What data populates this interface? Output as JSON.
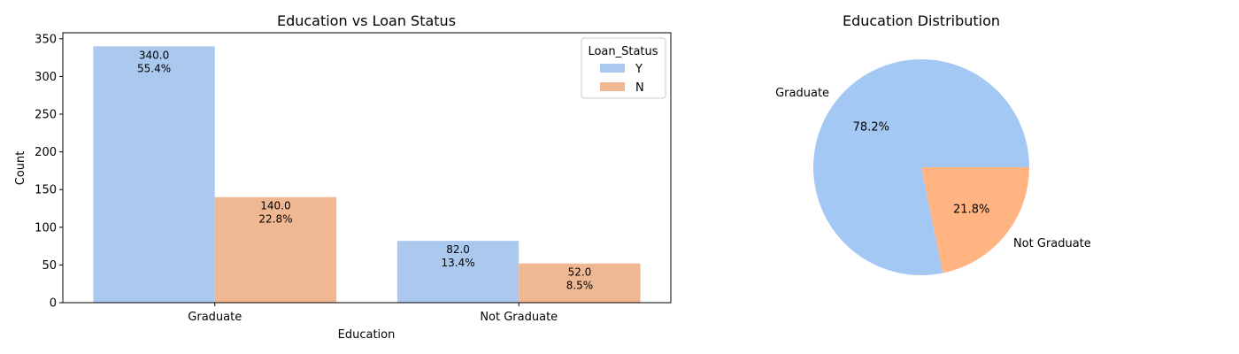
{
  "chart_data": [
    {
      "type": "bar",
      "title": "Education vs Loan Status",
      "xlabel": "Education",
      "ylabel": "Count",
      "categories": [
        "Graduate",
        "Not Graduate"
      ],
      "series": [
        {
          "name": "Y",
          "values": [
            340,
            82
          ],
          "labels": [
            "340.0\n55.4%",
            "82.0\n13.4%"
          ],
          "color": "#abc9ef"
        },
        {
          "name": "N",
          "values": [
            140,
            52
          ],
          "labels": [
            "140.0\n22.8%",
            "52.0\n8.5%"
          ],
          "color": "#f0b892"
        }
      ],
      "ylim": [
        0,
        358
      ],
      "yticks": [
        0,
        50,
        100,
        150,
        200,
        250,
        300,
        350
      ],
      "legend": {
        "title": "Loan_Status",
        "placement": "top-right"
      },
      "grid": false
    },
    {
      "type": "pie",
      "title": "Education Distribution",
      "slices": [
        {
          "label": "Graduate",
          "value": 78.2,
          "pct_label": "78.2%",
          "color": "#a3c8f4"
        },
        {
          "label": "Not Graduate",
          "value": 21.8,
          "pct_label": "21.8%",
          "color": "#ffb482"
        }
      ]
    }
  ]
}
